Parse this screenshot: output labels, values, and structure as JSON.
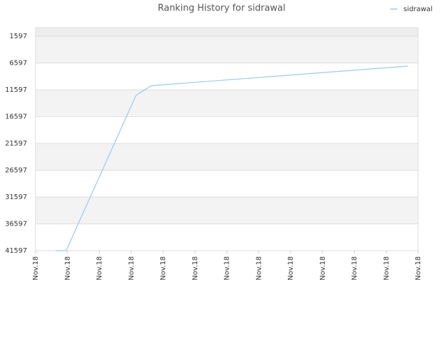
{
  "chart_data": {
    "type": "line",
    "title": "Ranking History for sidrawal",
    "x": [
      0.63,
      0.96,
      3.15,
      3.63,
      11.67
    ],
    "series": [
      {
        "name": "sidrawal",
        "color": "#99c9f0",
        "values": [
          41597,
          41597,
          12636,
          10818,
          7181
        ]
      }
    ],
    "xlim": [
      0,
      12
    ],
    "xticks": [
      {
        "value": 0,
        "label": "Nov.18"
      },
      {
        "value": 1,
        "label": "Nov.18"
      },
      {
        "value": 2,
        "label": "Nov.18"
      },
      {
        "value": 3,
        "label": "Nov.18"
      },
      {
        "value": 4,
        "label": "Nov.18"
      },
      {
        "value": 5,
        "label": "Nov.18"
      },
      {
        "value": 6,
        "label": "Nov.18"
      },
      {
        "value": 7,
        "label": "Nov.18"
      },
      {
        "value": 8,
        "label": "Nov.18"
      },
      {
        "value": 9,
        "label": "Nov.18"
      },
      {
        "value": 10,
        "label": "Nov.18"
      },
      {
        "value": 11,
        "label": "Nov.18"
      },
      {
        "value": 12,
        "label": "Nov.18"
      }
    ],
    "ylim": [
      41597,
      0
    ],
    "yticks": [
      1597,
      6597,
      11597,
      16597,
      21597,
      26597,
      31597,
      36597,
      41597
    ],
    "grid": true,
    "legend": "top-right"
  }
}
